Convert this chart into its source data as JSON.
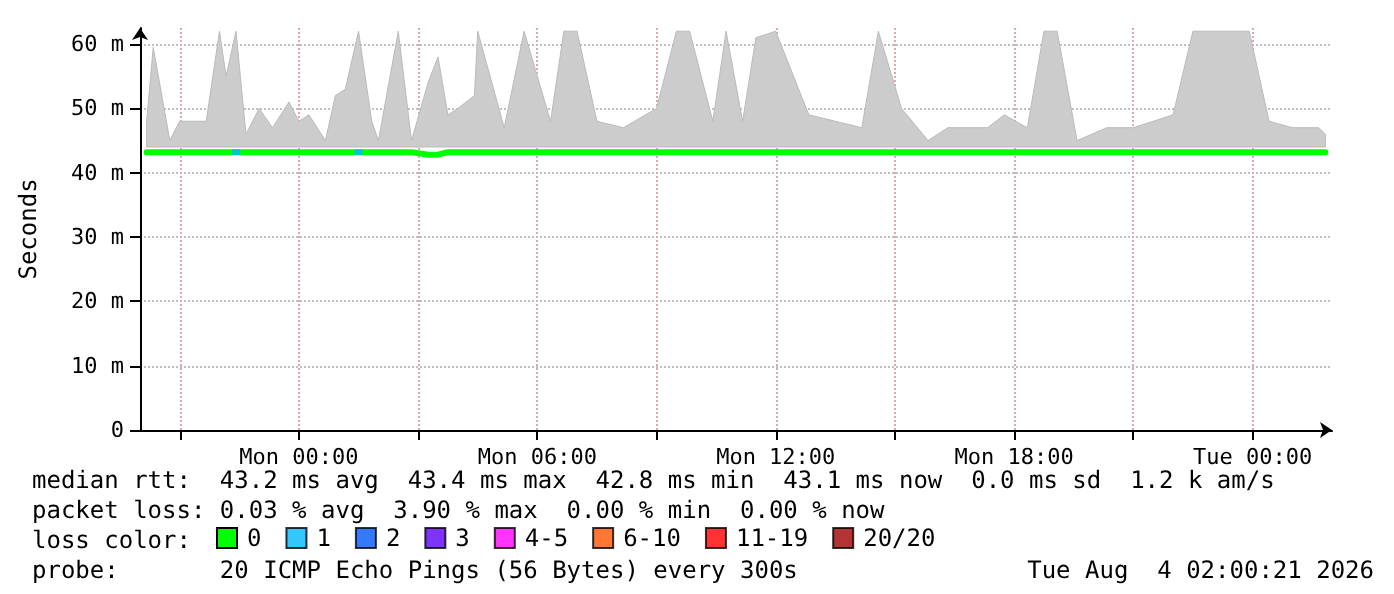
{
  "chart_data": {
    "type": "line",
    "ylabel": "Seconds",
    "legend_title": "loss color:",
    "legend": "bottom left",
    "grid": true,
    "line_style": "solid",
    "annotations": [
      "median rtt:  43.2 ms avg  43.4 ms max  42.8 ms min  43.1 ms now  0.0 ms sd  1.2 k am/s",
      "packet loss: 0.03 % avg  3.90 % max  0.00 % min  0.00 % now",
      "probe:       20 ICMP Echo Pings (56 Bytes) every 300s",
      "Tue Aug  4 02:00:21 2026"
    ],
    "xlim": [
      "2026-08-02T20:00",
      "2026-08-04T02:00"
    ],
    "xticks": [
      {
        "value": "2026-08-02T21:00",
        "label": null
      },
      {
        "value": "2026-08-03T00:00",
        "label": "Mon 00:00"
      },
      {
        "value": "2026-08-03T03:00",
        "label": null
      },
      {
        "value": "2026-08-03T06:00",
        "label": "Mon 06:00"
      },
      {
        "value": "2026-08-03T09:00",
        "label": null
      },
      {
        "value": "2026-08-03T12:00",
        "label": "Mon 12:00"
      },
      {
        "value": "2026-08-03T15:00",
        "label": null
      },
      {
        "value": "2026-08-03T18:00",
        "label": "Mon 18:00"
      },
      {
        "value": "2026-08-03T21:00",
        "label": null
      },
      {
        "value": "2026-08-04T00:00",
        "label": "Tue 00:00"
      }
    ],
    "ylim": [
      0,
      62.5
    ],
    "yticks": [
      0,
      {
        "value": 10,
        "label": "10 m"
      },
      {
        "value": 20,
        "label": "20 m"
      },
      {
        "value": 30,
        "label": "30 m"
      },
      {
        "value": 40,
        "label": "40 m"
      },
      {
        "value": 50,
        "label": "50 m"
      },
      {
        "value": 60,
        "label": "60 m"
      }
    ],
    "x": [
      "2026-08-02T20:10",
      "2026-08-02T20:20",
      "2026-08-02T20:45",
      "2026-08-02T21:00",
      "2026-08-02T21:30",
      "2026-08-02T21:40",
      "2026-08-02T22:00",
      "2026-08-02T22:10",
      "2026-08-02T22:25",
      "2026-08-02T22:40",
      "2026-08-02T23:00",
      "2026-08-02T23:20",
      "2026-08-02T23:45",
      "2026-08-03T00:00",
      "2026-08-03T00:15",
      "2026-08-03T00:40",
      "2026-08-03T00:55",
      "2026-08-03T01:10",
      "2026-08-03T01:30",
      "2026-08-03T01:50",
      "2026-08-03T02:00",
      "2026-08-03T02:30",
      "2026-08-03T02:50",
      "2026-08-03T03:15",
      "2026-08-03T03:30",
      "2026-08-03T03:45",
      "2026-08-03T04:00",
      "2026-08-03T04:25",
      "2026-08-03T04:30",
      "2026-08-03T05:10",
      "2026-08-03T05:40",
      "2026-08-03T06:20",
      "2026-08-03T06:40",
      "2026-08-03T07:00",
      "2026-08-03T07:30",
      "2026-08-03T08:10",
      "2026-08-03T09:00",
      "2026-08-03T09:30",
      "2026-08-03T09:50",
      "2026-08-03T10:25",
      "2026-08-03T10:45",
      "2026-08-03T11:10",
      "2026-08-03T11:30",
      "2026-08-03T12:00",
      "2026-08-03T12:50",
      "2026-08-03T13:30",
      "2026-08-03T14:10",
      "2026-08-03T14:35",
      "2026-08-03T15:10",
      "2026-08-03T15:50",
      "2026-08-03T16:20",
      "2026-08-03T17:20",
      "2026-08-03T17:45",
      "2026-08-03T18:20",
      "2026-08-03T18:45",
      "2026-08-03T19:05",
      "2026-08-03T19:35",
      "2026-08-03T20:20",
      "2026-08-03T21:00",
      "2026-08-03T21:30",
      "2026-08-03T22:00",
      "2026-08-03T22:30",
      "2026-08-03T23:10",
      "2026-08-03T23:25",
      "2026-08-03T23:40",
      "2026-08-03T23:55",
      "2026-08-04T00:25",
      "2026-08-04T01:00",
      "2026-08-04T01:40",
      "2026-08-04T01:50"
    ],
    "series": [
      {
        "name": "0",
        "type": "line",
        "color": "#00ff00",
        "values": [
          43.2,
          43.2,
          43.2,
          43.2,
          43.2,
          43.2,
          43.2,
          43.2,
          43.2,
          43.2,
          43.2,
          43.2,
          43.2,
          43.2,
          43.2,
          43.2,
          43.2,
          43.2,
          43.2,
          43.2,
          43.2,
          43.2,
          43.2,
          42.8,
          42.8,
          43.2,
          43.2,
          43.2,
          43.2,
          43.2,
          43.2,
          43.2,
          43.2,
          43.2,
          43.2,
          43.2,
          43.2,
          43.2,
          43.2,
          43.2,
          43.2,
          43.2,
          43.2,
          43.2,
          43.2,
          43.2,
          43.2,
          43.2,
          43.2,
          43.2,
          43.2,
          43.2,
          43.2,
          43.2,
          43.2,
          43.2,
          43.2,
          43.2,
          43.2,
          43.2,
          43.2,
          43.2,
          43.2,
          43.2,
          43.2,
          43.2,
          43.2,
          43.2,
          43.2,
          43.2
        ],
        "lower": [
          44,
          44,
          44,
          44,
          44,
          44,
          44,
          44,
          44,
          44,
          44,
          44,
          44,
          44,
          44,
          44,
          44,
          44,
          44,
          44,
          44,
          44,
          44,
          44,
          44,
          44,
          44,
          44,
          44,
          44,
          44,
          44,
          44,
          44,
          44,
          44,
          44,
          44,
          44,
          44,
          44,
          44,
          44,
          44,
          44,
          44,
          44,
          44,
          44,
          44,
          44,
          44,
          44,
          44,
          44,
          44,
          44,
          44,
          44,
          44,
          44,
          44,
          44,
          44,
          44,
          44,
          44,
          44,
          44,
          44
        ],
        "upper": [
          48,
          59.5,
          45,
          48,
          48,
          48,
          62,
          55,
          62,
          46,
          50,
          47,
          51,
          48,
          49,
          45,
          52,
          53,
          62,
          48,
          45,
          62,
          45,
          54,
          58,
          49,
          50,
          52,
          62,
          47,
          62,
          48,
          62,
          62,
          48,
          47,
          50,
          62,
          62,
          48,
          62,
          48,
          61,
          62,
          49,
          48,
          47,
          62,
          50,
          45,
          47,
          47,
          49,
          47,
          62,
          62,
          45,
          47,
          47,
          48,
          49,
          62,
          62,
          62,
          62,
          62,
          48,
          47,
          47,
          46
        ]
      },
      {
        "name": "1",
        "type": "scatter",
        "color": "#00b8ff",
        "x": [
          "2026-08-02T22:25",
          "2026-08-03T01:30"
        ],
        "values": [
          43.2,
          43.2
        ]
      },
      {
        "name": "2",
        "type": "scatter",
        "color": "#0059ff",
        "values": [
          null,
          null,
          null,
          null,
          null,
          null,
          null,
          null,
          null,
          null,
          null,
          null,
          null,
          null,
          null,
          null,
          null,
          null,
          null,
          null,
          null,
          null,
          null,
          null,
          null,
          null,
          null,
          null,
          null,
          null,
          null,
          null,
          null,
          null,
          null,
          null,
          null,
          null,
          null,
          null,
          null,
          null,
          null,
          null,
          null,
          null,
          null,
          null,
          null,
          null,
          null,
          null,
          null,
          null,
          null,
          null,
          null,
          null,
          null,
          null,
          null,
          null,
          null,
          null,
          null,
          null,
          null,
          null,
          null,
          null
        ]
      },
      {
        "name": "3",
        "type": "scatter",
        "color": "#5e00ff",
        "values": [
          null,
          null,
          null,
          null,
          null,
          null,
          null,
          null,
          null,
          null,
          null,
          null,
          null,
          null,
          null,
          null,
          null,
          null,
          null,
          null,
          null,
          null,
          null,
          null,
          null,
          null,
          null,
          null,
          null,
          null,
          null,
          null,
          null,
          null,
          null,
          null,
          null,
          null,
          null,
          null,
          null,
          null,
          null,
          null,
          null,
          null,
          null,
          null,
          null,
          null,
          null,
          null,
          null,
          null,
          null,
          null,
          null,
          null,
          null,
          null,
          null,
          null,
          null,
          null,
          null,
          null,
          null,
          null,
          null,
          null
        ]
      },
      {
        "name": "4-5",
        "type": "scatter",
        "color": "#ff00ff",
        "values": [
          null,
          null,
          null,
          null,
          null,
          null,
          null,
          null,
          null,
          null,
          null,
          null,
          null,
          null,
          null,
          null,
          null,
          null,
          null,
          null,
          null,
          null,
          null,
          null,
          null,
          null,
          null,
          null,
          null,
          null,
          null,
          null,
          null,
          null,
          null,
          null,
          null,
          null,
          null,
          null,
          null,
          null,
          null,
          null,
          null,
          null,
          null,
          null,
          null,
          null,
          null,
          null,
          null,
          null,
          null,
          null,
          null,
          null,
          null,
          null,
          null,
          null,
          null,
          null,
          null,
          null,
          null,
          null,
          null,
          null
        ]
      },
      {
        "name": "6-10",
        "type": "scatter",
        "color": "#ff5500",
        "values": [
          null,
          null,
          null,
          null,
          null,
          null,
          null,
          null,
          null,
          null,
          null,
          null,
          null,
          null,
          null,
          null,
          null,
          null,
          null,
          null,
          null,
          null,
          null,
          null,
          null,
          null,
          null,
          null,
          null,
          null,
          null,
          null,
          null,
          null,
          null,
          null,
          null,
          null,
          null,
          null,
          null,
          null,
          null,
          null,
          null,
          null,
          null,
          null,
          null,
          null,
          null,
          null,
          null,
          null,
          null,
          null,
          null,
          null,
          null,
          null,
          null,
          null,
          null,
          null,
          null,
          null,
          null,
          null,
          null,
          null
        ]
      },
      {
        "name": "11-19",
        "type": "scatter",
        "color": "#ff0000",
        "values": [
          null,
          null,
          null,
          null,
          null,
          null,
          null,
          null,
          null,
          null,
          null,
          null,
          null,
          null,
          null,
          null,
          null,
          null,
          null,
          null,
          null,
          null,
          null,
          null,
          null,
          null,
          null,
          null,
          null,
          null,
          null,
          null,
          null,
          null,
          null,
          null,
          null,
          null,
          null,
          null,
          null,
          null,
          null,
          null,
          null,
          null,
          null,
          null,
          null,
          null,
          null,
          null,
          null,
          null,
          null,
          null,
          null,
          null,
          null,
          null,
          null,
          null,
          null,
          null,
          null,
          null,
          null,
          null,
          null,
          null
        ]
      },
      {
        "name": "20/20",
        "type": "scatter",
        "color": "#a10000",
        "values": [
          null,
          null,
          null,
          null,
          null,
          null,
          null,
          null,
          null,
          null,
          null,
          null,
          null,
          null,
          null,
          null,
          null,
          null,
          null,
          null,
          null,
          null,
          null,
          null,
          null,
          null,
          null,
          null,
          null,
          null,
          null,
          null,
          null,
          null,
          null,
          null,
          null,
          null,
          null,
          null,
          null,
          null,
          null,
          null,
          null,
          null,
          null,
          null,
          null,
          null,
          null,
          null,
          null,
          null,
          null,
          null,
          null,
          null,
          null,
          null,
          null,
          null,
          null,
          null,
          null,
          null,
          null,
          null,
          null,
          null
        ]
      }
    ]
  }
}
